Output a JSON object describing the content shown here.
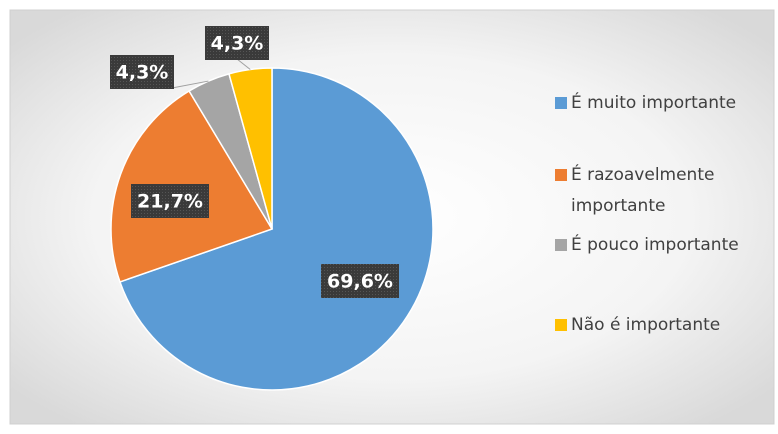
{
  "chart_data": {
    "type": "pie",
    "categories": [
      "É muito importante",
      "É razoavelmente importante",
      "É pouco importante",
      "Não é importante"
    ],
    "values": [
      69.6,
      21.7,
      4.3,
      4.3
    ],
    "value_labels": [
      "69,6%",
      "21,7%",
      "4,3%",
      "4,3%"
    ],
    "colors": [
      "#5b9bd5",
      "#ed7d31",
      "#a5a5a5",
      "#ffc000"
    ],
    "legend": "right"
  }
}
